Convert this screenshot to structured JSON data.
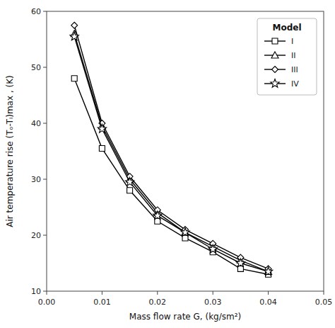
{
  "chart_data": {
    "type": "line",
    "xlabel": "Mass flow rate G, (kg/sm²)",
    "ylabel": "Air temperature rise (Tₒ-Tᵢ)max , (K)",
    "x": [
      0.005,
      0.01,
      0.015,
      0.02,
      0.025,
      0.03,
      0.035,
      0.04
    ],
    "series": [
      {
        "name": "I",
        "color": "black",
        "marker": "square",
        "values": [
          48.0,
          35.5,
          28.0,
          22.5,
          19.5,
          17.0,
          14.0,
          13.0
        ]
      },
      {
        "name": "II",
        "color": "black",
        "marker": "triangle",
        "values": [
          56.0,
          39.5,
          30.0,
          24.0,
          20.5,
          18.0,
          15.5,
          13.5
        ]
      },
      {
        "name": "III",
        "color": "black",
        "marker": "diamond",
        "values": [
          57.5,
          40.0,
          30.5,
          24.5,
          21.0,
          18.5,
          16.0,
          14.0
        ]
      },
      {
        "name": "IV",
        "color": "black",
        "marker": "star",
        "values": [
          55.5,
          39.0,
          29.5,
          23.5,
          20.5,
          17.5,
          15.0,
          13.5
        ]
      }
    ],
    "xlim": [
      0,
      0.05
    ],
    "ylim": [
      10,
      60
    ],
    "xticks": [
      {
        "value": 0,
        "label": "0.00"
      },
      0.01,
      0.02,
      0.03,
      0.04,
      0.05
    ],
    "yticks": [
      10,
      20,
      30,
      40,
      50,
      60
    ],
    "grid": false,
    "legend": "upper right",
    "legend_title": "Model"
  }
}
